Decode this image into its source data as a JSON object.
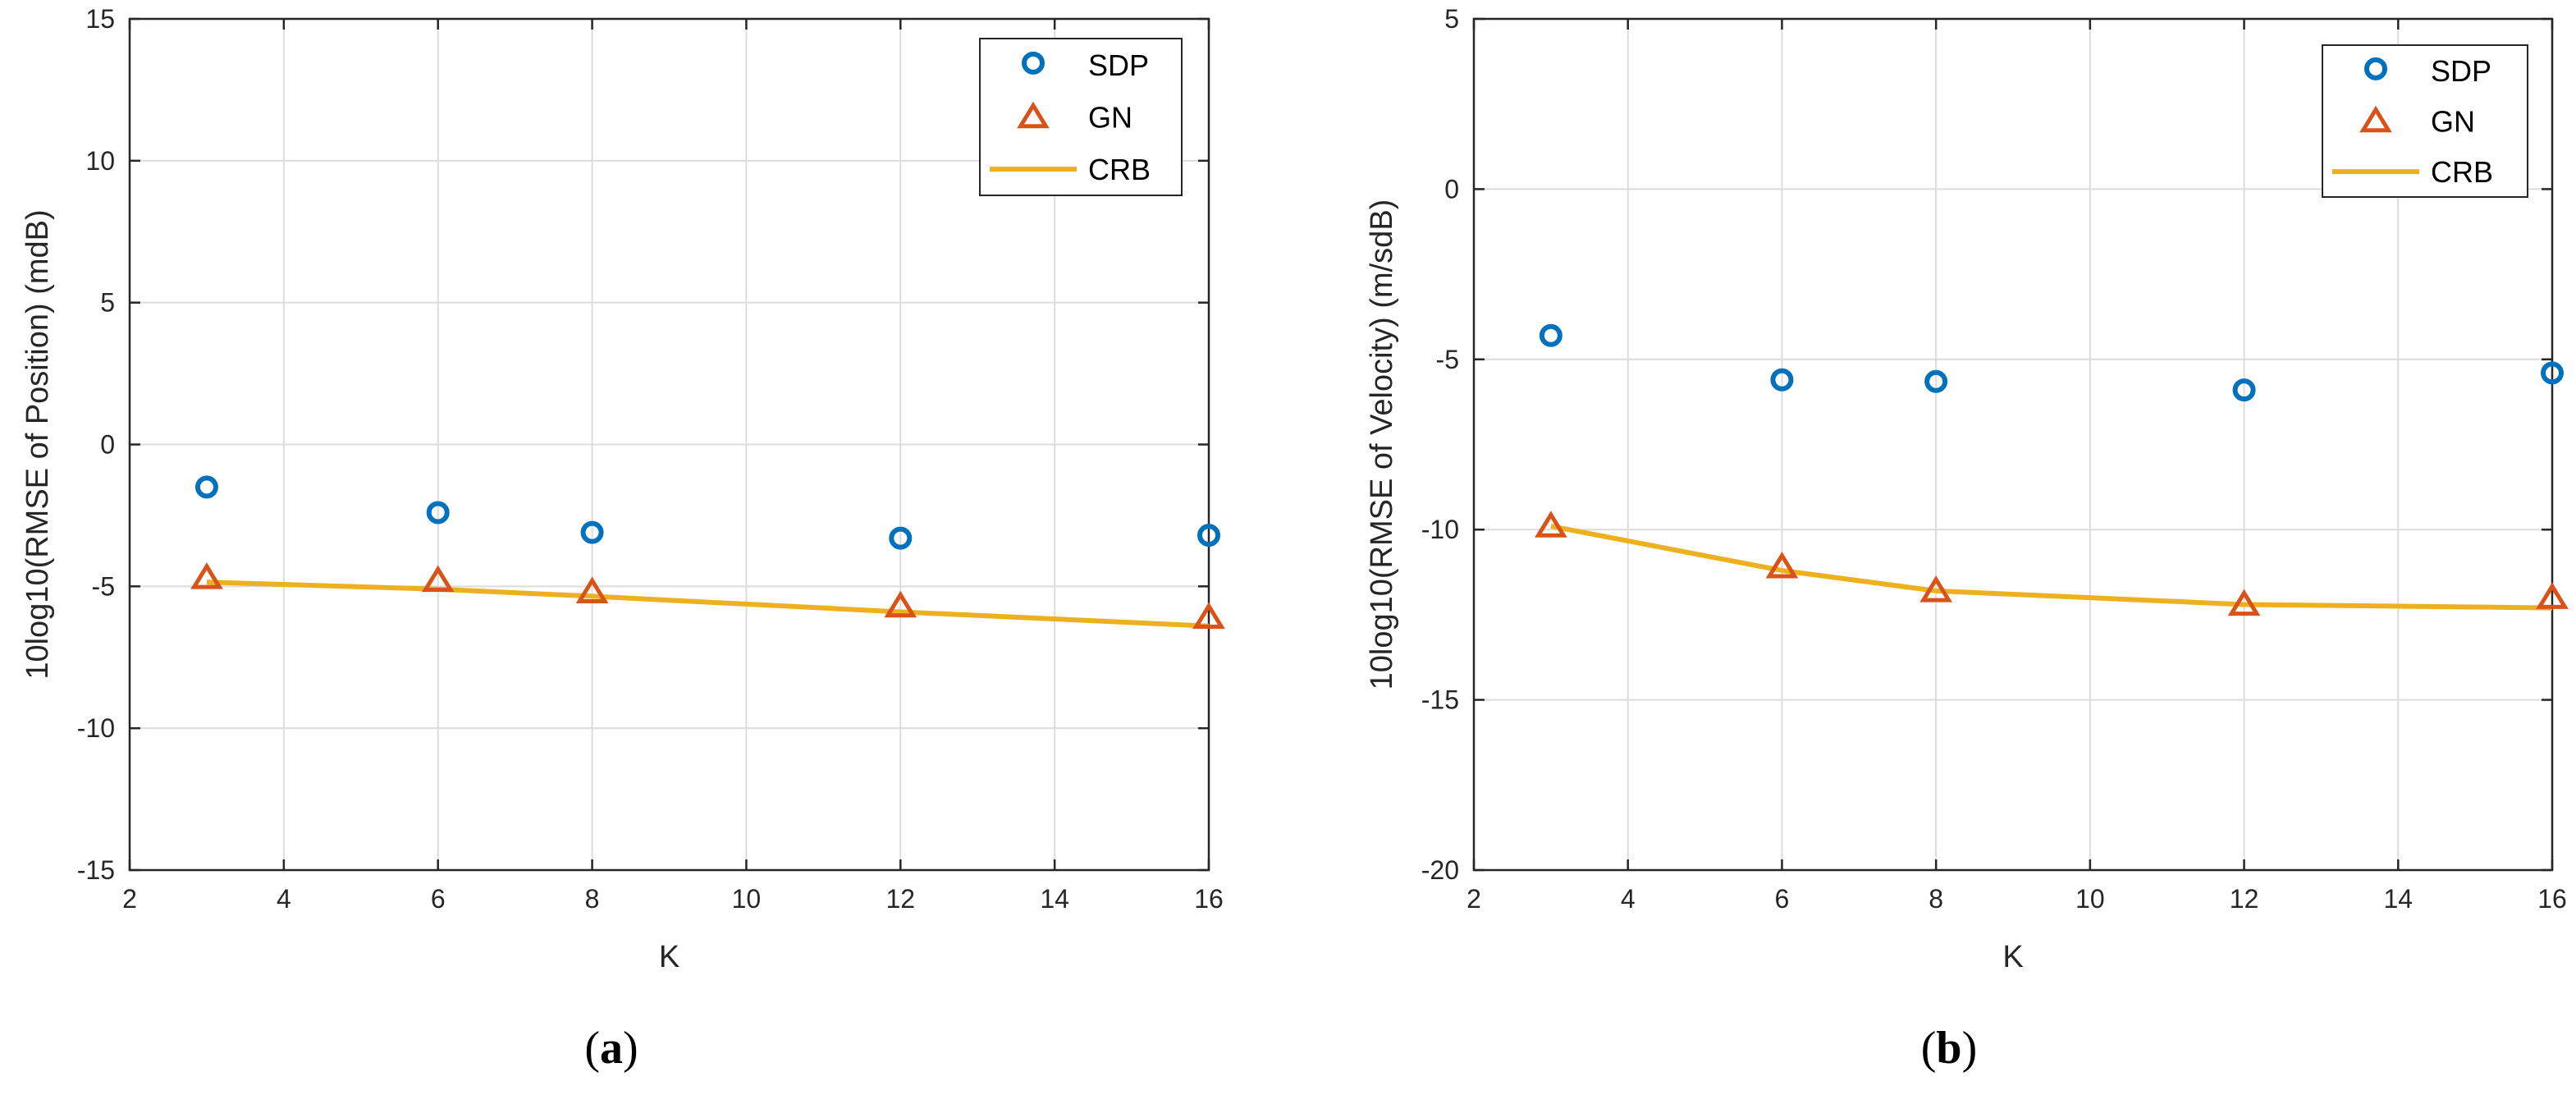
{
  "colors": {
    "sdp": "#0072BD",
    "gn": "#D95319",
    "crb": "#EDB120",
    "grid": "#DCDCDC",
    "axis": "#262626"
  },
  "legend_entries": [
    "SDP",
    "GN",
    "CRB"
  ],
  "chart_data": [
    {
      "type": "scatter",
      "caption": {
        "open": "(",
        "letter": "a",
        "close": ")"
      },
      "xlabel": "K",
      "ylabel": "10log10(RMSE of Position) (mdB)",
      "xlim": [
        2,
        16
      ],
      "ylim": [
        -15,
        15
      ],
      "xticks": [
        2,
        4,
        6,
        8,
        10,
        12,
        14,
        16
      ],
      "yticks": [
        -15,
        -10,
        -5,
        0,
        5,
        10,
        15
      ],
      "x": [
        3,
        6,
        8,
        12,
        16
      ],
      "series": [
        {
          "name": "SDP",
          "style": "circle",
          "values": [
            -1.5,
            -2.4,
            -3.1,
            -3.3,
            -3.2
          ]
        },
        {
          "name": "GN",
          "style": "triangle",
          "values": [
            -4.7,
            -4.8,
            -5.2,
            -5.7,
            -6.1
          ]
        },
        {
          "name": "CRB",
          "style": "line",
          "values": [
            -4.85,
            -5.1,
            -5.35,
            -5.9,
            -6.4
          ]
        }
      ],
      "legend": "top-right",
      "grid": true
    },
    {
      "type": "scatter",
      "caption": {
        "open": "(",
        "letter": "b",
        "close": ")"
      },
      "xlabel": "K",
      "ylabel": "10log10(RMSE of Velocity) (m/sdB)",
      "xlim": [
        2,
        16
      ],
      "ylim": [
        -20,
        5
      ],
      "xticks": [
        2,
        4,
        6,
        8,
        10,
        12,
        14,
        16
      ],
      "yticks": [
        -20,
        -15,
        -10,
        -5,
        0,
        5
      ],
      "x": [
        3,
        6,
        8,
        12,
        16
      ],
      "series": [
        {
          "name": "SDP",
          "style": "circle",
          "values": [
            -4.3,
            -5.6,
            -5.65,
            -5.9,
            -5.4
          ]
        },
        {
          "name": "GN",
          "style": "triangle",
          "values": [
            -9.9,
            -11.1,
            -11.8,
            -12.2,
            -12.0
          ]
        },
        {
          "name": "CRB",
          "style": "line",
          "values": [
            -9.9,
            -11.2,
            -11.8,
            -12.2,
            -12.3
          ]
        }
      ],
      "legend": "top-right",
      "grid": true
    }
  ]
}
